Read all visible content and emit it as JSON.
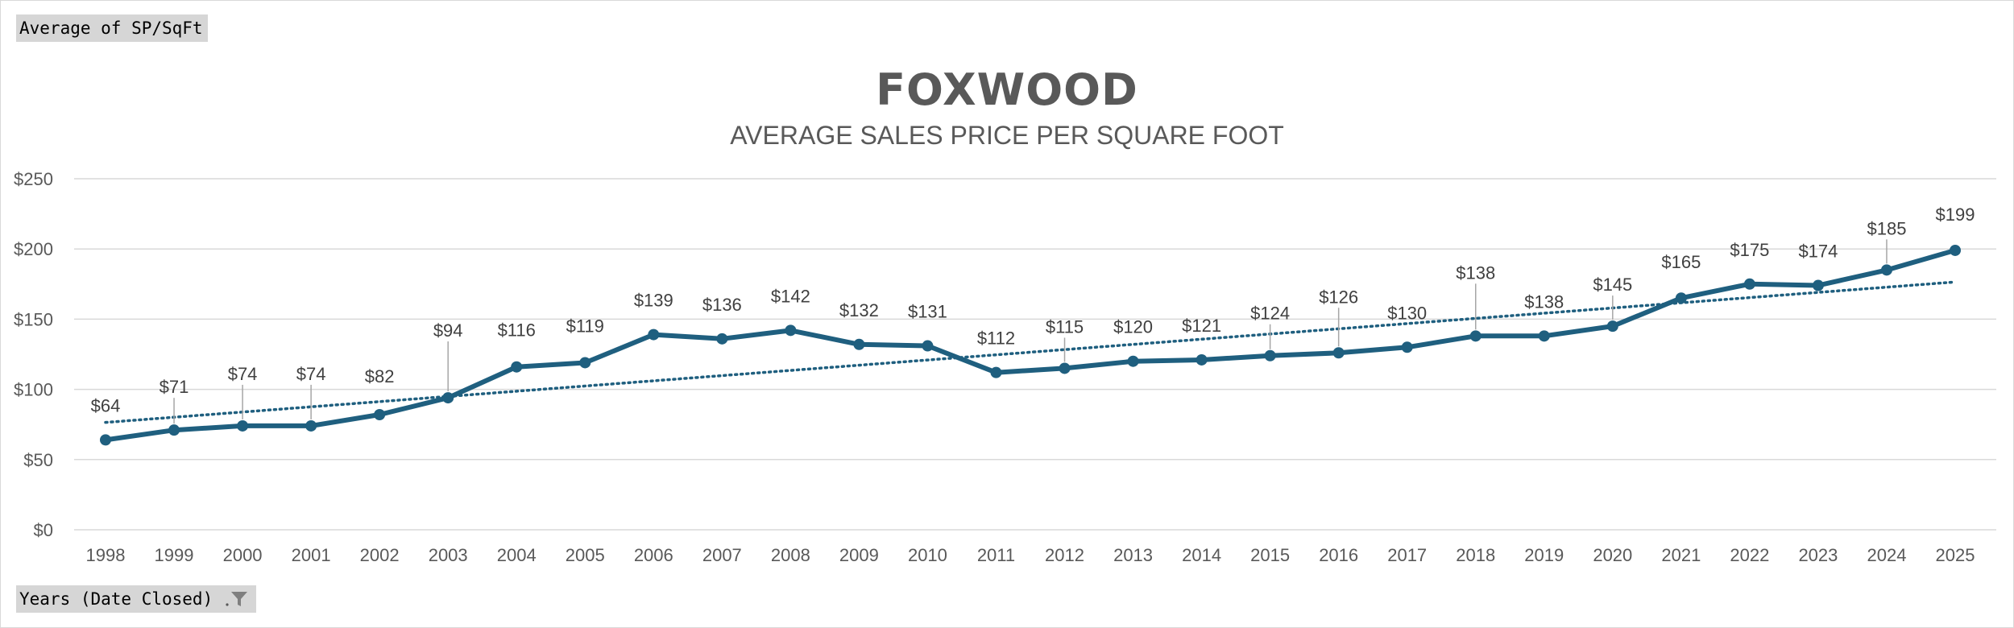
{
  "measure_button": {
    "label": "Average of SP/SqFt"
  },
  "axis_button": {
    "label": "Years (Date Closed)",
    "icon": "filter-icon"
  },
  "chart_data": {
    "type": "line",
    "title": "FOXWOOD",
    "subtitle": "AVERAGE SALES PRICE PER SQUARE FOOT",
    "xlabel": "",
    "ylabel": "",
    "categories": [
      "1998",
      "1999",
      "2000",
      "2001",
      "2002",
      "2003",
      "2004",
      "2005",
      "2006",
      "2007",
      "2008",
      "2009",
      "2010",
      "2011",
      "2012",
      "2013",
      "2014",
      "2015",
      "2016",
      "2017",
      "2018",
      "2019",
      "2020",
      "2021",
      "2022",
      "2023",
      "2024",
      "2025"
    ],
    "series": [
      {
        "name": "Average of SP/SqFt",
        "color": "#1f5f7f",
        "values": [
          64,
          71,
          74,
          74,
          82,
          94,
          116,
          119,
          139,
          136,
          142,
          132,
          131,
          112,
          115,
          120,
          121,
          124,
          126,
          130,
          138,
          138,
          145,
          165,
          175,
          174,
          185,
          199
        ]
      }
    ],
    "data_labels": [
      "$64",
      "$71",
      "$74",
      "$74",
      "$82",
      "$94",
      "$116",
      "$119",
      "$139",
      "$136",
      "$142",
      "$132",
      "$131",
      "$112",
      "$115",
      "$120",
      "$121",
      "$124",
      "$126",
      "$130",
      "$138",
      "$138",
      "$145",
      "$165",
      "$175",
      "$174",
      "$185",
      "$199"
    ],
    "trendline": {
      "type": "linear",
      "style": "dotted",
      "color": "#1f5f7f"
    },
    "ylim": [
      0,
      250
    ],
    "yticks": [
      0,
      50,
      100,
      150,
      200,
      250
    ],
    "ytick_labels": [
      "$0",
      "$50",
      "$100",
      "$150",
      "$200",
      "$250"
    ],
    "grid": true,
    "legend": "none",
    "colors": {
      "gridline": "#d9d9d9",
      "axis_text": "#595959",
      "title": "#595959"
    }
  }
}
